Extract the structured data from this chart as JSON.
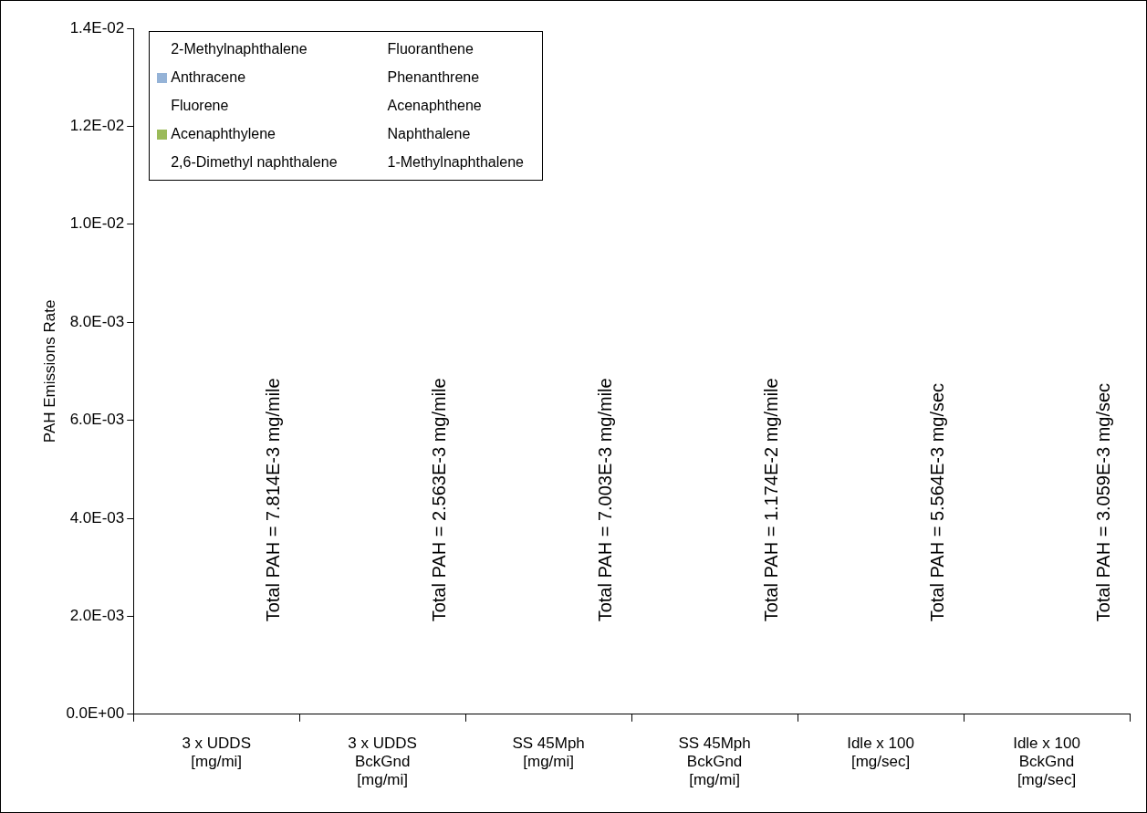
{
  "chart_data": {
    "type": "bar",
    "ylabel": "PAH Emissions Rate",
    "categories": [
      "3 x UDDS\n[mg/mi]",
      "3 x UDDS\nBckGnd\n[mg/mi]",
      "SS 45Mph\n[mg/mi]",
      "SS 45Mph\nBckGnd\n[mg/mi]",
      "Idle x 100\n[mg/sec]",
      "Idle x 100\nBckGnd\n[mg/sec]"
    ],
    "series": [
      {
        "name": "2-Methylnaphthalene",
        "values": [
          null,
          null,
          null,
          null,
          null,
          null
        ]
      },
      {
        "name": "Fluoranthene",
        "values": [
          null,
          null,
          null,
          null,
          null,
          null
        ]
      },
      {
        "name": "Anthracene",
        "color": "#95b3d7",
        "values": [
          null,
          null,
          null,
          null,
          null,
          null
        ]
      },
      {
        "name": "Phenanthrene",
        "values": [
          null,
          null,
          null,
          null,
          null,
          null
        ]
      },
      {
        "name": "Fluorene",
        "values": [
          null,
          null,
          null,
          null,
          null,
          null
        ]
      },
      {
        "name": "Acenaphthene",
        "values": [
          null,
          null,
          null,
          null,
          null,
          null
        ]
      },
      {
        "name": "Acenaphthylene",
        "color": "#9bbb59",
        "values": [
          null,
          null,
          null,
          null,
          null,
          null
        ]
      },
      {
        "name": "Naphthalene",
        "values": [
          null,
          null,
          null,
          null,
          null,
          null
        ]
      },
      {
        "name": "2,6-Dimethyl naphthalene",
        "values": [
          null,
          null,
          null,
          null,
          null,
          null
        ]
      },
      {
        "name": "1-Methylnaphthalene",
        "values": [
          null,
          null,
          null,
          null,
          null,
          null
        ]
      }
    ],
    "totals": [
      "Total PAH = 7.814E-3 mg/mile",
      "Total PAH = 2.563E-3 mg/mile",
      "Total PAH = 7.003E-3 mg/mile",
      "Total PAH = 1.174E-2 mg/mile",
      "Total PAH = 5.564E-3 mg/sec",
      "Total PAH = 3.059E-3 mg/sec"
    ],
    "ylim": [
      0,
      0.014
    ],
    "yticks": [
      {
        "value": 0,
        "label": "0.0E+00"
      },
      {
        "value": 0.002,
        "label": "2.0E-03"
      },
      {
        "value": 0.004,
        "label": "4.0E-03"
      },
      {
        "value": 0.006,
        "label": "6.0E-03"
      },
      {
        "value": 0.008,
        "label": "8.0E-03"
      },
      {
        "value": 0.01,
        "label": "1.0E-02"
      },
      {
        "value": 0.012,
        "label": "1.2E-02"
      },
      {
        "value": 0.014,
        "label": "1.4E-02"
      }
    ],
    "legend": "top left"
  }
}
